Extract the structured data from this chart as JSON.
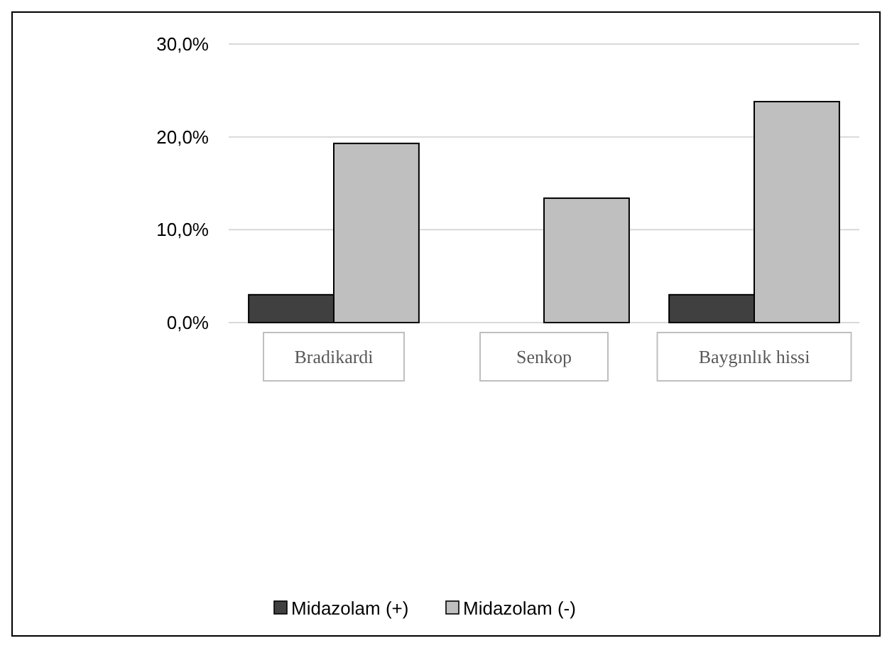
{
  "chart_data": {
    "type": "bar",
    "categories": [
      "Bradikardi",
      "Senkop",
      "Baygınlık hissi"
    ],
    "series": [
      {
        "name": "Midazolam (+)",
        "color": "#404040",
        "values": [
          3.0,
          0,
          3.0
        ]
      },
      {
        "name": "Midazolam (-)",
        "color": "#bfbfbf",
        "values": [
          19.3,
          13.4,
          23.8
        ]
      }
    ],
    "ylim": [
      0,
      30
    ],
    "yticks": [
      {
        "value": 0,
        "label": "0,0%"
      },
      {
        "value": 10,
        "label": "10,0%"
      },
      {
        "value": 20,
        "label": "20,0%"
      },
      {
        "value": 30,
        "label": "30,0%"
      }
    ],
    "grid": "y",
    "legend": "bottom"
  }
}
